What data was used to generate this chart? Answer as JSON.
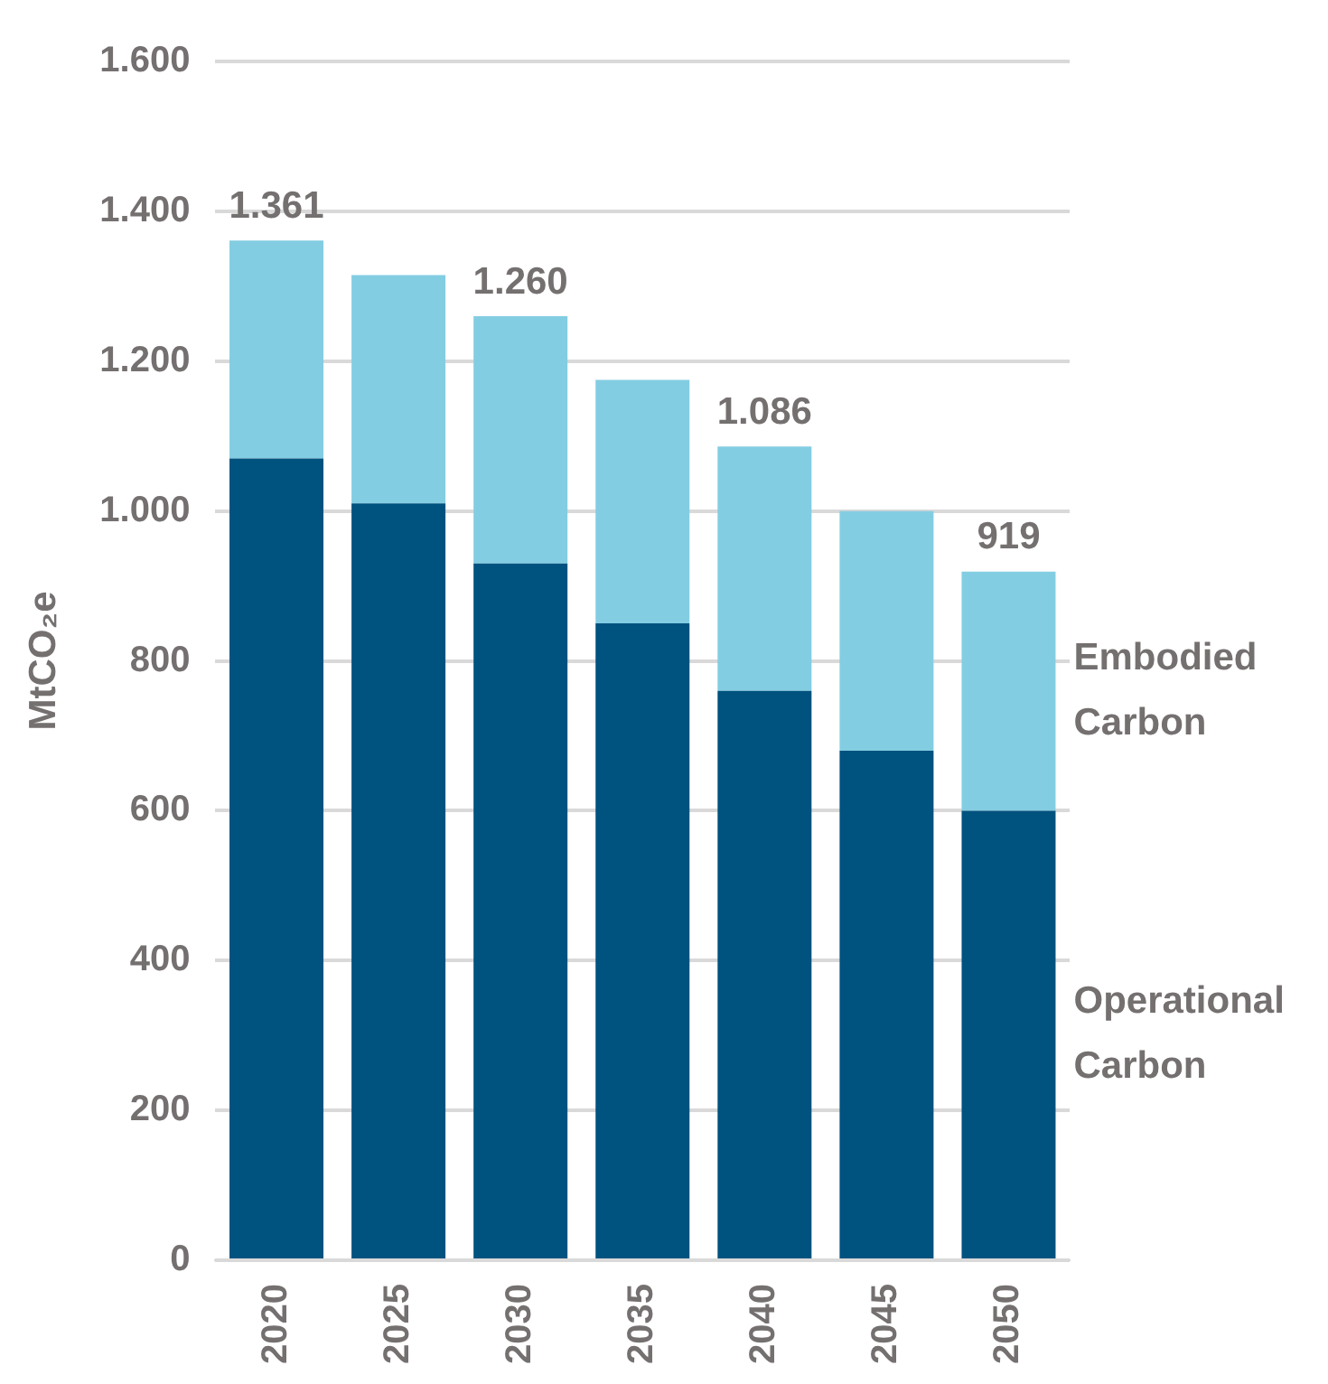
{
  "chart_data": {
    "type": "bar",
    "stacked": true,
    "ylabel": "MtCO₂e",
    "categories": [
      "2020",
      "2025",
      "2030",
      "2035",
      "2040",
      "2045",
      "2050"
    ],
    "series": [
      {
        "name": "Operational Carbon",
        "color": "#00527f",
        "values": [
          1070,
          1010,
          930,
          850,
          760,
          680,
          600
        ]
      },
      {
        "name": "Embodied Carbon",
        "color": "#83cde2",
        "values": [
          291,
          305,
          330,
          325,
          326,
          320,
          319
        ]
      }
    ],
    "totals": [
      "1.361",
      null,
      "1.260",
      null,
      "1.086",
      null,
      "919"
    ],
    "ylim": [
      0,
      1600
    ],
    "yticks": [
      0,
      200,
      400,
      600,
      800,
      {
        "value": 1000,
        "label": "1.000"
      },
      {
        "value": 1200,
        "label": "1.200"
      },
      {
        "value": 1400,
        "label": "1.400"
      },
      {
        "value": 1600,
        "label": "1.600"
      }
    ],
    "grid": "y",
    "legend": false
  }
}
